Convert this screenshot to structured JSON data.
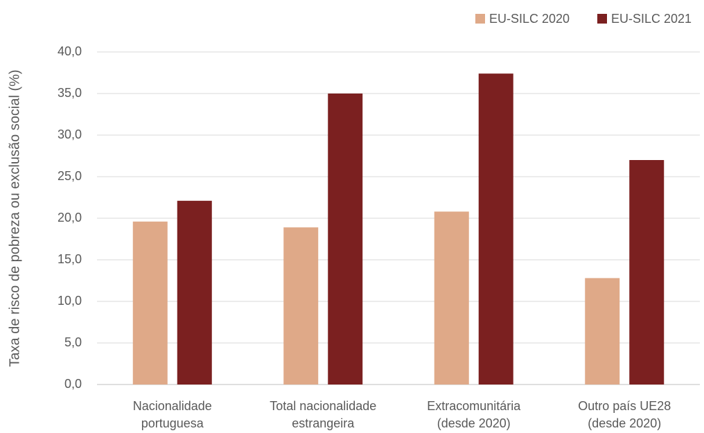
{
  "chart_data": {
    "type": "bar",
    "y_label": "Taxa de risco de pobreza ou exclusão social (%)",
    "categories": [
      [
        "Nacionalidade",
        "portuguesa"
      ],
      [
        "Total nacionalidade",
        "estrangeira"
      ],
      [
        "Extracomunitária",
        "(desde 2020)"
      ],
      [
        "Outro país UE28",
        "(desde 2020)"
      ]
    ],
    "series": [
      {
        "name": "EU-SILC 2020",
        "color": "#dfa988",
        "values": [
          19.6,
          18.9,
          20.8,
          12.8
        ]
      },
      {
        "name": "EU-SILC 2021",
        "color": "#7b2020",
        "values": [
          22.1,
          35.0,
          37.4,
          27.0
        ]
      }
    ],
    "ylim": [
      0,
      40
    ],
    "yticks": [
      {
        "value": 0,
        "label": "0,0"
      },
      {
        "value": 5,
        "label": "5,0"
      },
      {
        "value": 10,
        "label": "10,0"
      },
      {
        "value": 15,
        "label": "15,0"
      },
      {
        "value": 20,
        "label": "20,0"
      },
      {
        "value": 25,
        "label": "25,0"
      },
      {
        "value": 30,
        "label": "30,0"
      },
      {
        "value": 35,
        "label": "35,0"
      },
      {
        "value": 40,
        "label": "40,0"
      }
    ],
    "grid": true,
    "legend": "top-right"
  }
}
